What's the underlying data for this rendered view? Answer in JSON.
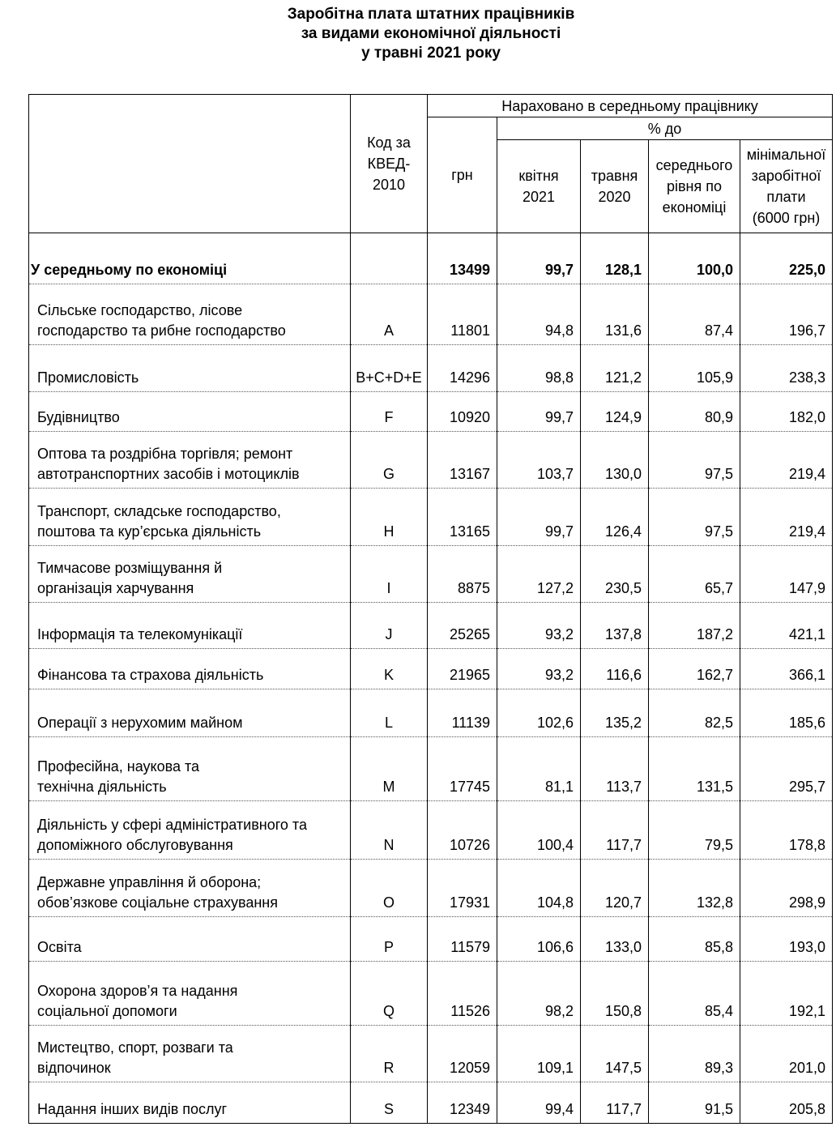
{
  "title": [
    "Заробітна плата штатних працівників",
    "за видами економічної діяльності",
    "у травні 2021 року"
  ],
  "header": {
    "code": [
      "Код за",
      "КВЕД-",
      "2010"
    ],
    "accrued": "Нараховано в середньому працівнику",
    "uah": "грн",
    "percent_to": "% до",
    "columns": [
      [
        "квітня",
        "2021"
      ],
      [
        "травня",
        "2020"
      ],
      [
        "середнього",
        "рівня по",
        "економіці"
      ],
      [
        "мінімальної",
        "заробітної",
        "плати",
        "(6000 грн)"
      ]
    ]
  },
  "table": {
    "rows": [
      {
        "name": [
          "У середньому по економіці"
        ],
        "values": [
          "13499",
          "99,7",
          "128,1",
          "100,0",
          "225,0"
        ]
      },
      {
        "name": [
          "Сільське господарство, лісове",
          "господарство та рибне господарство"
        ],
        "code": "A",
        "values": [
          "11801",
          "94,8",
          "131,6",
          "87,4",
          "196,7"
        ]
      },
      {
        "name": [
          "Промисловість"
        ],
        "code": "B+C+D+E",
        "values": [
          "14296",
          "98,8",
          "121,2",
          "105,9",
          "238,3"
        ]
      },
      {
        "name": [
          "Будівництво"
        ],
        "code": "F",
        "values": [
          "10920",
          "99,7",
          "124,9",
          "80,9",
          "182,0"
        ]
      },
      {
        "name": [
          "Оптова та роздрібна торгівля; ремонт",
          "автотранспортних засобів і мотоциклів"
        ],
        "code": "G",
        "values": [
          "13167",
          "103,7",
          "130,0",
          "97,5",
          "219,4"
        ]
      },
      {
        "name": [
          "Транспорт, складське господарство,",
          "поштова та кур’єрська діяльність"
        ],
        "code": "H",
        "values": [
          "13165",
          "99,7",
          "126,4",
          "97,5",
          "219,4"
        ]
      },
      {
        "name": [
          "Тимчасове розміщування й",
          "організація харчування"
        ],
        "code": "I",
        "values": [
          "8875",
          "127,2",
          "230,5",
          "65,7",
          "147,9"
        ]
      },
      {
        "name": [
          "Інформація та телекомунікації"
        ],
        "code": "J",
        "values": [
          "25265",
          "93,2",
          "137,8",
          "187,2",
          "421,1"
        ]
      },
      {
        "name": [
          "Фінансова та страхова діяльність"
        ],
        "code": "K",
        "values": [
          "21965",
          "93,2",
          "116,6",
          "162,7",
          "366,1"
        ]
      },
      {
        "name": [
          "Операції з нерухомим майном"
        ],
        "code": "L",
        "values": [
          "11139",
          "102,6",
          "135,2",
          "82,5",
          "185,6"
        ]
      },
      {
        "name": [
          "Професійна, наукова та",
          "технічна діяльність"
        ],
        "code": "M",
        "values": [
          "17745",
          "81,1",
          "113,7",
          "131,5",
          "295,7"
        ]
      },
      {
        "name": [
          "Діяльність у сфері адміністративного та",
          "допоміжного обслуговування"
        ],
        "code": "N",
        "values": [
          "10726",
          "100,4",
          "117,7",
          "79,5",
          "178,8"
        ]
      },
      {
        "name": [
          "Державне управління й оборона;",
          "обов’язкове соціальне страхування"
        ],
        "code": "O",
        "values": [
          "17931",
          "104,8",
          "120,7",
          "132,8",
          "298,9"
        ]
      },
      {
        "name": [
          "Освіта"
        ],
        "code": "P",
        "values": [
          "11579",
          "106,6",
          "133,0",
          "85,8",
          "193,0"
        ]
      },
      {
        "name": [
          "Охорона здоров’я та надання",
          "соціальної допомоги"
        ],
        "code": "Q",
        "values": [
          "11526",
          "98,2",
          "150,8",
          "85,4",
          "192,1"
        ]
      },
      {
        "name": [
          "Мистецтво, спорт, розваги та",
          "відпочинок"
        ],
        "code": "R",
        "values": [
          "12059",
          "109,1",
          "147,5",
          "89,3",
          "201,0"
        ]
      },
      {
        "name": [
          "Надання інших видів послуг"
        ],
        "code": "S",
        "values": [
          "12349",
          "99,4",
          "117,7",
          "91,5",
          "205,8"
        ]
      }
    ]
  }
}
